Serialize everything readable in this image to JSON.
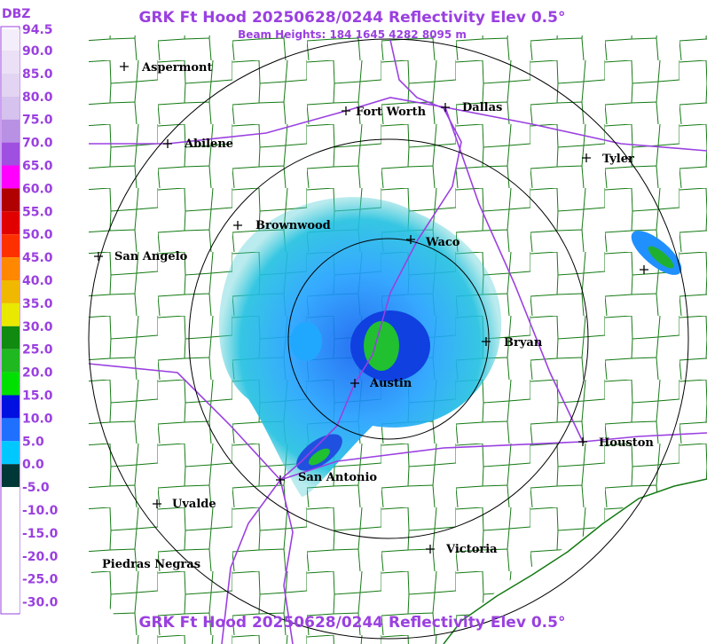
{
  "header": {
    "title": "GRK Ft Hood 20250628/0244 Reflectivity Elev 0.5°",
    "subtitle": "Beam Heights: 184 1645 4282 8095 m"
  },
  "legend": {
    "unit": "DBZ",
    "entries": [
      {
        "label": "94.5",
        "color": "#f4eefa"
      },
      {
        "label": "90.0",
        "color": "#ebe0f5"
      },
      {
        "label": "85.0",
        "color": "#e2d4f2"
      },
      {
        "label": "80.0",
        "color": "#d6c2ee"
      },
      {
        "label": "75.0",
        "color": "#b890e4"
      },
      {
        "label": "70.0",
        "color": "#a050e0"
      },
      {
        "label": "65.0",
        "color": "#ff00ff"
      },
      {
        "label": "60.0",
        "color": "#b00000"
      },
      {
        "label": "55.0",
        "color": "#e00000"
      },
      {
        "label": "50.0",
        "color": "#ff3000"
      },
      {
        "label": "45.0",
        "color": "#ff8800"
      },
      {
        "label": "40.0",
        "color": "#f0b800"
      },
      {
        "label": "35.0",
        "color": "#e8e800"
      },
      {
        "label": "30.0",
        "color": "#108a10"
      },
      {
        "label": "25.0",
        "color": "#20b820"
      },
      {
        "label": "20.0",
        "color": "#00e000"
      },
      {
        "label": "15.0",
        "color": "#0010e0"
      },
      {
        "label": "10.0",
        "color": "#2070ff"
      },
      {
        "label": "5.0",
        "color": "#00c8ff"
      },
      {
        "label": "0.0",
        "color": "#003838"
      },
      {
        "label": "-5.0",
        "color": "#ffffff"
      },
      {
        "label": "-10.0",
        "color": "#ffffff"
      },
      {
        "label": "-15.0",
        "color": "#ffffff"
      },
      {
        "label": "-20.0",
        "color": "#ffffff"
      },
      {
        "label": "-25.0",
        "color": "#ffffff"
      },
      {
        "label": "-30.0",
        "color": "#ffffff"
      }
    ]
  },
  "cities": [
    "Aspermont",
    "Abilene",
    "Fort Worth",
    "Dallas",
    "Tyler",
    "Brownwood",
    "Waco",
    "San Angelo",
    "Bryan",
    "Austin",
    "Houston",
    "San Antonio",
    "Uvalde",
    "Victoria",
    "Piedras Negras"
  ],
  "footer": {
    "title": "GRK Ft Hood 20250628/0244 Reflectivity Elev 0.5°"
  }
}
